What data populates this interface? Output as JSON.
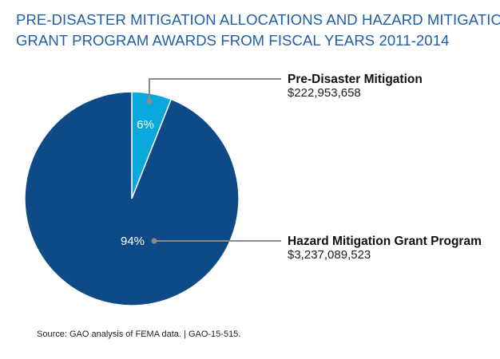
{
  "chart_data": {
    "type": "pie",
    "title_lines": [
      "PRE-DISASTER MITIGATION ALLOCATIONS AND HAZARD MITIGATION",
      "GRANT PROGRAM AWARDS FROM FISCAL YEARS 2011-2014"
    ],
    "slices": [
      {
        "name": "Pre-Disaster Mitigation",
        "value_label": "$222,953,658",
        "value": 222953658,
        "percent": 6,
        "percent_label": "6%",
        "color": "#0aa8dd"
      },
      {
        "name": "Hazard Mitigation Grant Program",
        "value_label": "$3,237,089,523",
        "value": 3237089523,
        "percent": 94,
        "percent_label": "94%",
        "color": "#0d4a87"
      }
    ],
    "source": "Source: GAO analysis of FEMA data. | GAO-15-515."
  },
  "colors": {
    "title": "#1f5fa8",
    "leader_line": "#8a8a8a",
    "slice_border": "#ffffff"
  }
}
